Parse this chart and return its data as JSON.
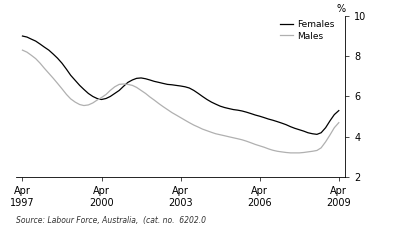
{
  "source_text": "Source: Labour Force, Australia,  (cat. no.  6202.0",
  "ylabel": "%",
  "ylim": [
    2,
    10
  ],
  "yticks": [
    2,
    4,
    6,
    8,
    10
  ],
  "xlim_start": 1997.0,
  "xlim_end": 2009.5,
  "xtick_positions": [
    1997.25,
    2000.25,
    2003.25,
    2006.25,
    2009.25
  ],
  "xtick_labels": [
    "Apr\n1997",
    "Apr\n2000",
    "Apr\n2003",
    "Apr\n2006",
    "Apr\n2009"
  ],
  "females_color": "#000000",
  "males_color": "#b0b0b0",
  "legend_females": "Females",
  "legend_males": "Males",
  "background_color": "#ffffff",
  "linewidth": 0.9,
  "females_data": [
    [
      1997.25,
      9.0
    ],
    [
      1997.42,
      8.95
    ],
    [
      1997.58,
      8.85
    ],
    [
      1997.75,
      8.75
    ],
    [
      1997.92,
      8.6
    ],
    [
      1998.08,
      8.45
    ],
    [
      1998.25,
      8.3
    ],
    [
      1998.42,
      8.1
    ],
    [
      1998.58,
      7.9
    ],
    [
      1998.75,
      7.65
    ],
    [
      1998.92,
      7.35
    ],
    [
      1999.08,
      7.05
    ],
    [
      1999.25,
      6.8
    ],
    [
      1999.42,
      6.55
    ],
    [
      1999.58,
      6.35
    ],
    [
      1999.75,
      6.15
    ],
    [
      1999.92,
      6.0
    ],
    [
      2000.08,
      5.9
    ],
    [
      2000.25,
      5.85
    ],
    [
      2000.42,
      5.9
    ],
    [
      2000.58,
      6.0
    ],
    [
      2000.75,
      6.15
    ],
    [
      2000.92,
      6.3
    ],
    [
      2001.08,
      6.5
    ],
    [
      2001.25,
      6.7
    ],
    [
      2001.42,
      6.82
    ],
    [
      2001.58,
      6.9
    ],
    [
      2001.75,
      6.92
    ],
    [
      2001.92,
      6.88
    ],
    [
      2002.08,
      6.82
    ],
    [
      2002.25,
      6.75
    ],
    [
      2002.42,
      6.7
    ],
    [
      2002.58,
      6.65
    ],
    [
      2002.75,
      6.6
    ],
    [
      2002.92,
      6.58
    ],
    [
      2003.08,
      6.55
    ],
    [
      2003.25,
      6.52
    ],
    [
      2003.42,
      6.48
    ],
    [
      2003.58,
      6.42
    ],
    [
      2003.75,
      6.3
    ],
    [
      2003.92,
      6.15
    ],
    [
      2004.08,
      6.0
    ],
    [
      2004.25,
      5.85
    ],
    [
      2004.42,
      5.72
    ],
    [
      2004.58,
      5.62
    ],
    [
      2004.75,
      5.52
    ],
    [
      2004.92,
      5.45
    ],
    [
      2005.08,
      5.4
    ],
    [
      2005.25,
      5.35
    ],
    [
      2005.42,
      5.32
    ],
    [
      2005.58,
      5.28
    ],
    [
      2005.75,
      5.22
    ],
    [
      2005.92,
      5.15
    ],
    [
      2006.08,
      5.08
    ],
    [
      2006.25,
      5.02
    ],
    [
      2006.42,
      4.95
    ],
    [
      2006.58,
      4.88
    ],
    [
      2006.75,
      4.82
    ],
    [
      2006.92,
      4.75
    ],
    [
      2007.08,
      4.68
    ],
    [
      2007.25,
      4.6
    ],
    [
      2007.42,
      4.5
    ],
    [
      2007.58,
      4.42
    ],
    [
      2007.75,
      4.35
    ],
    [
      2007.92,
      4.28
    ],
    [
      2008.08,
      4.2
    ],
    [
      2008.25,
      4.15
    ],
    [
      2008.42,
      4.12
    ],
    [
      2008.58,
      4.2
    ],
    [
      2008.75,
      4.45
    ],
    [
      2008.92,
      4.8
    ],
    [
      2009.08,
      5.1
    ],
    [
      2009.25,
      5.3
    ]
  ],
  "males_data": [
    [
      1997.25,
      8.3
    ],
    [
      1997.42,
      8.2
    ],
    [
      1997.58,
      8.05
    ],
    [
      1997.75,
      7.88
    ],
    [
      1997.92,
      7.65
    ],
    [
      1998.08,
      7.4
    ],
    [
      1998.25,
      7.15
    ],
    [
      1998.42,
      6.9
    ],
    [
      1998.58,
      6.65
    ],
    [
      1998.75,
      6.38
    ],
    [
      1998.92,
      6.1
    ],
    [
      1999.08,
      5.88
    ],
    [
      1999.25,
      5.72
    ],
    [
      1999.42,
      5.6
    ],
    [
      1999.58,
      5.55
    ],
    [
      1999.75,
      5.58
    ],
    [
      1999.92,
      5.68
    ],
    [
      2000.08,
      5.82
    ],
    [
      2000.25,
      5.95
    ],
    [
      2000.42,
      6.1
    ],
    [
      2000.58,
      6.3
    ],
    [
      2000.75,
      6.48
    ],
    [
      2000.92,
      6.6
    ],
    [
      2001.08,
      6.62
    ],
    [
      2001.25,
      6.6
    ],
    [
      2001.42,
      6.55
    ],
    [
      2001.58,
      6.45
    ],
    [
      2001.75,
      6.3
    ],
    [
      2001.92,
      6.15
    ],
    [
      2002.08,
      5.98
    ],
    [
      2002.25,
      5.82
    ],
    [
      2002.42,
      5.65
    ],
    [
      2002.58,
      5.5
    ],
    [
      2002.75,
      5.35
    ],
    [
      2002.92,
      5.2
    ],
    [
      2003.08,
      5.08
    ],
    [
      2003.25,
      4.95
    ],
    [
      2003.42,
      4.82
    ],
    [
      2003.58,
      4.7
    ],
    [
      2003.75,
      4.58
    ],
    [
      2003.92,
      4.48
    ],
    [
      2004.08,
      4.38
    ],
    [
      2004.25,
      4.3
    ],
    [
      2004.42,
      4.22
    ],
    [
      2004.58,
      4.15
    ],
    [
      2004.75,
      4.1
    ],
    [
      2004.92,
      4.05
    ],
    [
      2005.08,
      4.0
    ],
    [
      2005.25,
      3.95
    ],
    [
      2005.42,
      3.9
    ],
    [
      2005.58,
      3.85
    ],
    [
      2005.75,
      3.78
    ],
    [
      2005.92,
      3.7
    ],
    [
      2006.08,
      3.62
    ],
    [
      2006.25,
      3.55
    ],
    [
      2006.42,
      3.48
    ],
    [
      2006.58,
      3.4
    ],
    [
      2006.75,
      3.33
    ],
    [
      2006.92,
      3.28
    ],
    [
      2007.08,
      3.25
    ],
    [
      2007.25,
      3.22
    ],
    [
      2007.42,
      3.2
    ],
    [
      2007.58,
      3.2
    ],
    [
      2007.75,
      3.2
    ],
    [
      2007.92,
      3.22
    ],
    [
      2008.08,
      3.25
    ],
    [
      2008.25,
      3.28
    ],
    [
      2008.42,
      3.32
    ],
    [
      2008.58,
      3.45
    ],
    [
      2008.75,
      3.75
    ],
    [
      2008.92,
      4.1
    ],
    [
      2009.08,
      4.45
    ],
    [
      2009.25,
      4.7
    ]
  ]
}
